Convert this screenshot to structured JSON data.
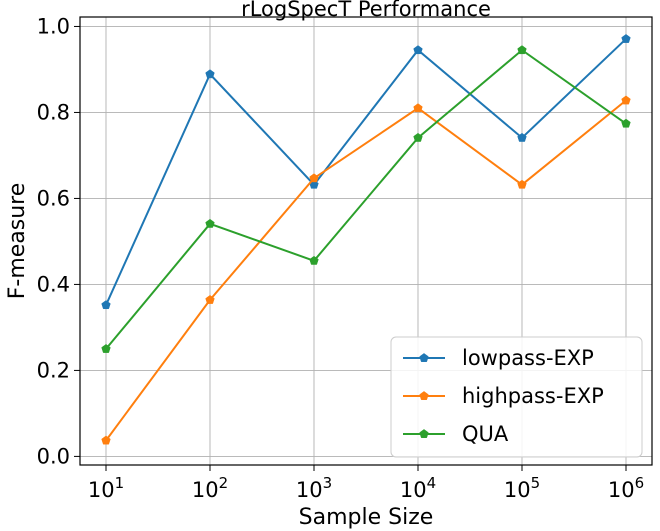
{
  "chart_data": {
    "type": "line",
    "title": "rLogSpecT Performance",
    "xlabel": "Sample Size",
    "ylabel": "F-measure",
    "x_scale": "log10",
    "x": [
      1,
      2,
      3,
      4,
      5,
      6
    ],
    "x_tick_labels": [
      {
        "base": "10",
        "exp": "1"
      },
      {
        "base": "10",
        "exp": "2"
      },
      {
        "base": "10",
        "exp": "3"
      },
      {
        "base": "10",
        "exp": "4"
      },
      {
        "base": "10",
        "exp": "5"
      },
      {
        "base": "10",
        "exp": "6"
      }
    ],
    "ylim": [
      0,
      1
    ],
    "y_ticks": [
      "0.0",
      "0.2",
      "0.4",
      "0.6",
      "0.8",
      "1.0"
    ],
    "grid": true,
    "legend_position": "bottom-right",
    "series": [
      {
        "name": "lowpass-EXP",
        "color": "#1f77b4",
        "values": [
          0.352,
          0.889,
          0.632,
          0.945,
          0.741,
          0.971
        ]
      },
      {
        "name": "highpass-EXP",
        "color": "#ff7f0e",
        "values": [
          0.037,
          0.364,
          0.647,
          0.81,
          0.632,
          0.828
        ]
      },
      {
        "name": "QUA",
        "color": "#2ca02c",
        "values": [
          0.25,
          0.541,
          0.455,
          0.741,
          0.945,
          0.774
        ]
      }
    ]
  }
}
